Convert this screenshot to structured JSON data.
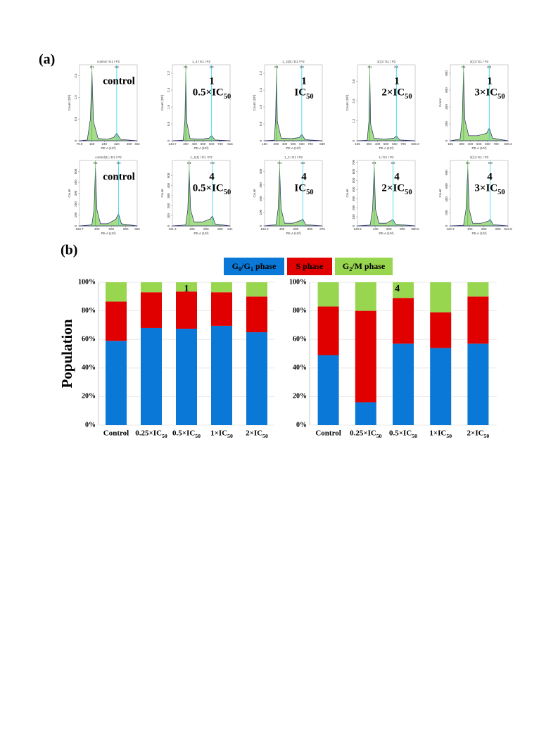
{
  "figure_labels": [
    "(a)",
    "(b)"
  ],
  "legend": [
    {
      "name": "G0/G1 phase",
      "color": "#0a78d6"
    },
    {
      "name": "S phase",
      "color": "#e00000"
    },
    {
      "name": "G2/M phase",
      "color": "#98d650"
    }
  ],
  "chart_data": [
    {
      "type": "area",
      "title": "control / E1 / P2",
      "label": [
        "control"
      ],
      "xlabel": "PE-A (10³)",
      "ylabel": "Count (10³)",
      "xlim": [
        79.9,
        452
      ],
      "xticks": [
        79.9,
        160,
        240,
        320,
        400,
        452
      ],
      "ylim": [
        0,
        2.8
      ],
      "yticks": [
        0,
        0.8,
        1.6,
        2.4
      ],
      "markers": [
        {
          "label": "G1",
          "x": 160
        },
        {
          "label": "G2",
          "x": 320
        }
      ],
      "x": [
        79.9,
        130,
        150,
        160,
        170,
        200,
        260,
        300,
        320,
        345,
        452
      ],
      "values": [
        0,
        0.03,
        0.8,
        2.55,
        0.7,
        0.08,
        0.06,
        0.12,
        0.28,
        0.05,
        0
      ]
    },
    {
      "type": "area",
      "title": "1_4 / E1 / P2",
      "label": [
        "1",
        "0.5×IC50"
      ],
      "xlabel": "PE-A (10³)",
      "ylabel": "Count (10³)",
      "xlim": [
        143.7,
        816
      ],
      "xticks": [
        143.7,
        300,
        400,
        500,
        600,
        700,
        816
      ],
      "ylim": [
        0,
        3.6
      ],
      "yticks": [
        0,
        0.8,
        1.6,
        2.4,
        3.2
      ],
      "markers": [
        {
          "label": "G1",
          "x": 300
        },
        {
          "label": "G2",
          "x": 600
        }
      ],
      "x": [
        143.7,
        270,
        290,
        300,
        310,
        350,
        480,
        570,
        600,
        640,
        816
      ],
      "values": [
        0,
        0.03,
        1.0,
        3.25,
        0.9,
        0.1,
        0.08,
        0.12,
        0.25,
        0.04,
        0
      ]
    },
    {
      "type": "area",
      "title": "1_2(3) / E1 / P2",
      "label": [
        "1",
        "IC50"
      ],
      "xlabel": "PE-A (10³)",
      "ylabel": "Count (10³)",
      "xlim": [
        166,
        839
      ],
      "xticks": [
        166,
        300,
        400,
        500,
        600,
        700,
        839
      ],
      "ylim": [
        0,
        3.6
      ],
      "yticks": [
        0,
        0.8,
        1.6,
        2.4,
        3.2
      ],
      "markers": [
        {
          "label": "G1",
          "x": 305
        },
        {
          "label": "G2",
          "x": 600
        }
      ],
      "x": [
        166,
        280,
        295,
        305,
        315,
        360,
        480,
        570,
        600,
        640,
        839
      ],
      "values": [
        0,
        0.03,
        1.1,
        3.35,
        0.9,
        0.12,
        0.1,
        0.15,
        0.3,
        0.05,
        0
      ]
    },
    {
      "type": "area",
      "title": "1(1) / E1 / P2",
      "label": [
        "1",
        "2×IC50"
      ],
      "xlabel": "PE-A (10³)",
      "ylabel": "Count (10³)",
      "xlim": [
        166,
        839.3
      ],
      "xticks": [
        166,
        300,
        400,
        500,
        600,
        700,
        839.3
      ],
      "ylim": [
        0,
        4.6
      ],
      "yticks": [
        0,
        1.2,
        2.4,
        3.6
      ],
      "markers": [
        {
          "label": "G1",
          "x": 310
        },
        {
          "label": "G2",
          "x": 620
        }
      ],
      "x": [
        166,
        280,
        300,
        310,
        320,
        360,
        480,
        590,
        620,
        660,
        839.3
      ],
      "values": [
        0,
        0.03,
        1.2,
        4.0,
        1.0,
        0.15,
        0.1,
        0.15,
        0.3,
        0.05,
        0
      ]
    },
    {
      "type": "area",
      "title": "2(1) / E1 / P2",
      "label": [
        "1",
        "3×IC50"
      ],
      "xlabel": "PE-A (10³)",
      "ylabel": "Count",
      "xlim": [
        166,
        839.3
      ],
      "xticks": [
        166,
        300,
        400,
        500,
        600,
        700,
        839.3
      ],
      "ylim": [
        0,
        900
      ],
      "yticks": [
        0,
        200,
        400,
        600,
        800
      ],
      "markers": [
        {
          "label": "G1",
          "x": 320
        },
        {
          "label": "G2",
          "x": 620
        }
      ],
      "x": [
        166,
        280,
        305,
        320,
        335,
        380,
        480,
        590,
        620,
        660,
        839.3
      ],
      "values": [
        0,
        20,
        250,
        820,
        250,
        60,
        60,
        90,
        150,
        30,
        0
      ]
    },
    {
      "type": "area",
      "title": "control(1) / E1 / P2",
      "label": [
        "control"
      ],
      "xlabel": "PE-A (10³)",
      "ylabel": "Count",
      "xlim": [
        158.7,
        959
      ],
      "xticks": [
        158.7,
        400,
        600,
        800,
        959
      ],
      "ylim": [
        0,
        600
      ],
      "yticks": [
        0,
        100,
        200,
        300,
        400,
        500
      ],
      "markers": [
        {
          "label": "G1",
          "x": 380
        },
        {
          "label": "G2",
          "x": 700
        }
      ],
      "x": [
        158.7,
        330,
        360,
        380,
        400,
        450,
        550,
        660,
        700,
        740,
        959
      ],
      "values": [
        0,
        10,
        150,
        530,
        150,
        20,
        20,
        60,
        110,
        20,
        0
      ]
    },
    {
      "type": "area",
      "title": "1_4(1) / E1 / P2",
      "label": [
        "4",
        "0.5×IC50"
      ],
      "xlabel": "PE-A (10³)",
      "ylabel": "Count",
      "xlim": [
        121.2,
        941
      ],
      "xticks": [
        121.2,
        400,
        600,
        800,
        941
      ],
      "ylim": [
        0,
        650
      ],
      "yticks": [
        0,
        100,
        200,
        300,
        400,
        500
      ],
      "markers": [
        {
          "label": "G1",
          "x": 360
        },
        {
          "label": "G2",
          "x": 690
        }
      ],
      "x": [
        121.2,
        310,
        340,
        360,
        380,
        430,
        550,
        660,
        690,
        730,
        941
      ],
      "values": [
        0,
        10,
        160,
        560,
        160,
        40,
        40,
        70,
        100,
        20,
        0
      ]
    },
    {
      "type": "area",
      "title": "1_2 / E1 / P2",
      "label": [
        "4",
        "IC50"
      ],
      "xlabel": "PE-A (10³)",
      "ylabel": "Count",
      "xlim": [
        156.2,
        976
      ],
      "xticks": [
        156.2,
        400,
        600,
        800,
        976
      ],
      "ylim": [
        0,
        480
      ],
      "yticks": [
        0,
        100,
        200,
        300,
        400
      ],
      "markers": [
        {
          "label": "G1",
          "x": 370
        },
        {
          "label": "G2",
          "x": 700
        }
      ],
      "x": [
        156.2,
        320,
        350,
        370,
        390,
        440,
        560,
        670,
        700,
        740,
        976
      ],
      "values": [
        0,
        10,
        130,
        420,
        130,
        20,
        20,
        40,
        50,
        10,
        0
      ]
    },
    {
      "type": "area",
      "title": "1 / E1 / P2",
      "label": [
        "4",
        "2×IC50"
      ],
      "xlabel": "PE-A (10³)",
      "ylabel": "Count",
      "xlim": [
        129.9,
        990.5
      ],
      "xticks": [
        129.9,
        400,
        600,
        800,
        990.5
      ],
      "ylim": [
        0,
        720
      ],
      "yticks": [
        0,
        100,
        200,
        300,
        400,
        500,
        600,
        700
      ],
      "markers": [
        {
          "label": "G1",
          "x": 380
        },
        {
          "label": "G2",
          "x": 660
        }
      ],
      "x": [
        129.9,
        320,
        355,
        380,
        400,
        450,
        560,
        630,
        660,
        700,
        990.5
      ],
      "values": [
        0,
        10,
        180,
        640,
        180,
        30,
        30,
        60,
        70,
        20,
        0
      ]
    },
    {
      "type": "area",
      "title": "2(1) / E1 / P2",
      "label": [
        "4",
        "3×IC50"
      ],
      "xlabel": "PE-A (10³)",
      "ylabel": "Count",
      "xlim": [
        122.2,
        942.8
      ],
      "xticks": [
        122.2,
        400,
        600,
        800,
        942.8
      ],
      "ylim": [
        0,
        980
      ],
      "yticks": [
        0,
        200,
        400,
        600,
        800
      ],
      "markers": [
        {
          "label": "G1",
          "x": 370
        },
        {
          "label": "G2",
          "x": 690
        }
      ],
      "x": [
        122.2,
        310,
        345,
        370,
        390,
        440,
        560,
        660,
        690,
        730,
        942.8
      ],
      "values": [
        0,
        10,
        250,
        860,
        250,
        40,
        40,
        70,
        100,
        20,
        0
      ]
    },
    {
      "type": "stacked_bar",
      "label": "1",
      "ylabel": "Population",
      "categories": [
        "Control",
        "0.25×IC50",
        "0.5×IC50",
        "1×IC50",
        "2×IC50"
      ],
      "ylim": [
        0,
        100
      ],
      "yticks": [
        {
          "value": 0,
          "label": "0%"
        },
        {
          "value": 20,
          "label": "20%"
        },
        {
          "value": 40,
          "label": "40%"
        },
        {
          "value": 60,
          "label": "60%"
        },
        {
          "value": 80,
          "label": "80%"
        },
        {
          "value": 100,
          "label": "100%"
        }
      ],
      "grid": true,
      "series": [
        {
          "values": [
            59,
            68,
            67.5,
            69.5,
            65
          ]
        },
        {
          "values": [
            27.5,
            25,
            26,
            23.5,
            25
          ]
        },
        {
          "values": [
            13.5,
            7,
            6.5,
            7,
            10
          ]
        }
      ]
    },
    {
      "type": "stacked_bar",
      "label": "4",
      "categories": [
        "Control",
        "0.25×IC50",
        "0.5×IC50",
        "1×IC50",
        "2×IC50"
      ],
      "ylim": [
        0,
        100
      ],
      "yticks": [
        {
          "value": 0,
          "label": "0%"
        },
        {
          "value": 20,
          "label": "20%"
        },
        {
          "value": 40,
          "label": "40%"
        },
        {
          "value": 60,
          "label": "60%"
        },
        {
          "value": 80,
          "label": "80%"
        },
        {
          "value": 100,
          "label": "100%"
        }
      ],
      "grid": true,
      "series": [
        {
          "values": [
            49,
            16,
            57,
            54,
            57
          ]
        },
        {
          "values": [
            34,
            64,
            32,
            25,
            33
          ]
        },
        {
          "values": [
            17,
            20,
            11,
            21,
            10
          ]
        }
      ]
    }
  ]
}
